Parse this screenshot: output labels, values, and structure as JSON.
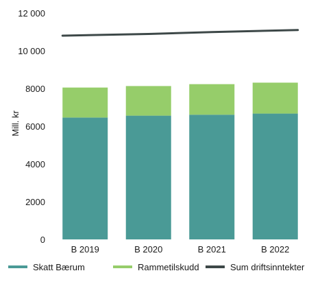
{
  "chart_data": {
    "type": "bar",
    "stacked": true,
    "categories": [
      "B 2019",
      "B 2020",
      "B 2021",
      "B 2022"
    ],
    "ylabel": "Mill. kr",
    "ylim": [
      0,
      12000
    ],
    "yticks": [
      0,
      2000,
      4000,
      6000,
      8000,
      10000,
      12000
    ],
    "ytick_labels": [
      "0",
      "2000",
      "4000",
      "6000",
      "8000",
      "10 000",
      "12 000"
    ],
    "grid": false,
    "legend_position": "bottom",
    "series": [
      {
        "name": "Skatt Bærum",
        "kind": "bar",
        "color": "#4a9a96",
        "values": [
          6460,
          6560,
          6610,
          6670
        ]
      },
      {
        "name": "Rammetilskudd",
        "kind": "bar",
        "color": "#96cd6a",
        "values": [
          1590,
          1570,
          1620,
          1640
        ]
      },
      {
        "name": "Sum driftsinntekter",
        "kind": "line",
        "color": "#3d4848",
        "values": [
          10800,
          10890,
          10990,
          11100
        ]
      }
    ]
  }
}
